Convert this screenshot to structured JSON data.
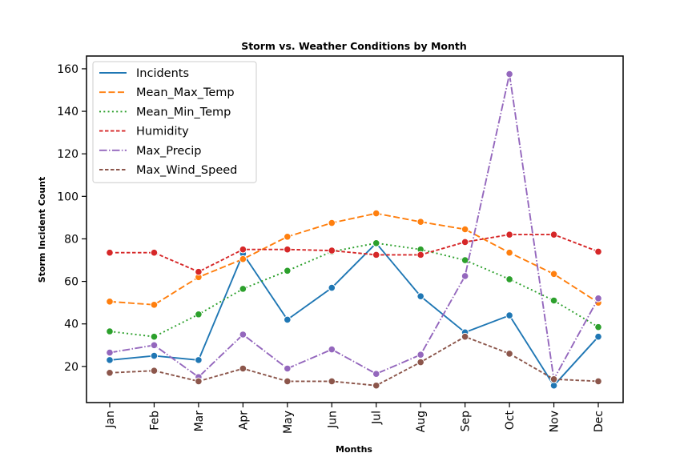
{
  "chart_data": {
    "type": "line",
    "title": "Storm vs. Weather Conditions by Month",
    "xlabel": "Months",
    "ylabel": "Storm Incident Count",
    "categories": [
      "Jan",
      "Feb",
      "Mar",
      "Apr",
      "May",
      "Jun",
      "Jul",
      "Aug",
      "Sep",
      "Oct",
      "Nov",
      "Dec"
    ],
    "ylim": [
      3,
      166
    ],
    "yticks": [
      20,
      40,
      60,
      80,
      100,
      120,
      140,
      160
    ],
    "grid": false,
    "legend_position": "top-left",
    "series": [
      {
        "name": "Incidents",
        "color": "#1f77b4",
        "dash": "solid",
        "values": [
          23,
          25,
          23,
          73,
          42,
          57,
          78,
          53,
          36,
          44,
          11,
          34
        ]
      },
      {
        "name": "Mean_Max_Temp",
        "color": "#ff7f0e",
        "dash": "dashed",
        "values": [
          50.5,
          49,
          62,
          70.5,
          81,
          87.5,
          92,
          88,
          84.5,
          73.5,
          63.5,
          50
        ]
      },
      {
        "name": "Mean_Min_Temp",
        "color": "#2ca02c",
        "dash": "dotted",
        "values": [
          36.5,
          34,
          44.5,
          56.5,
          65,
          74,
          78,
          75,
          70,
          61,
          51,
          38.5
        ]
      },
      {
        "name": "Humidity",
        "color": "#d62728",
        "dash": "densedash",
        "values": [
          73.5,
          73.5,
          64.5,
          75,
          75,
          74.5,
          72.5,
          72.5,
          78.5,
          82,
          82,
          74
        ]
      },
      {
        "name": "Max_Precip",
        "color": "#9467bd",
        "dash": "dashdot",
        "values": [
          26.5,
          30,
          15,
          35,
          19,
          28,
          16.5,
          25.5,
          62.5,
          157.5,
          14,
          52
        ]
      },
      {
        "name": "Max_Wind_Speed",
        "color": "#8c564b",
        "dash": "densedash",
        "values": [
          17,
          18,
          13,
          19,
          13,
          13,
          11,
          22,
          34,
          26,
          14,
          13
        ]
      }
    ]
  }
}
